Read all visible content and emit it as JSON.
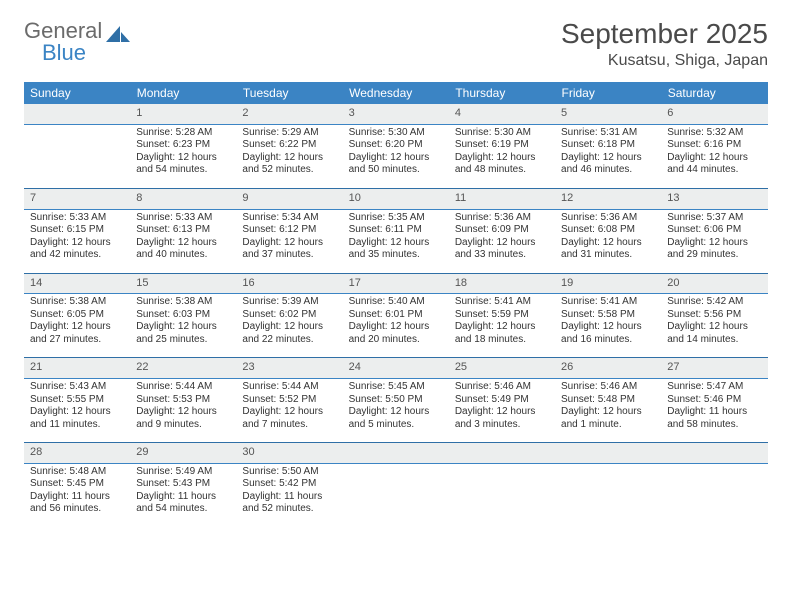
{
  "brand": {
    "word1": "General",
    "word2": "Blue"
  },
  "title": {
    "month": "September 2025",
    "location": "Kusatsu, Shiga, Japan"
  },
  "colors": {
    "header_bg": "#3b84c4",
    "header_text": "#ffffff",
    "daynum_bg": "#eceeee",
    "rule": "#2f6fa6",
    "logo_gray": "#6b6b6b",
    "logo_blue": "#3b84c4"
  },
  "day_headers": [
    "Sunday",
    "Monday",
    "Tuesday",
    "Wednesday",
    "Thursday",
    "Friday",
    "Saturday"
  ],
  "weeks": [
    {
      "nums": [
        "",
        "1",
        "2",
        "3",
        "4",
        "5",
        "6"
      ],
      "details": [
        [
          "",
          "",
          "",
          ""
        ],
        [
          "Sunrise: 5:28 AM",
          "Sunset: 6:23 PM",
          "Daylight: 12 hours",
          "and 54 minutes."
        ],
        [
          "Sunrise: 5:29 AM",
          "Sunset: 6:22 PM",
          "Daylight: 12 hours",
          "and 52 minutes."
        ],
        [
          "Sunrise: 5:30 AM",
          "Sunset: 6:20 PM",
          "Daylight: 12 hours",
          "and 50 minutes."
        ],
        [
          "Sunrise: 5:30 AM",
          "Sunset: 6:19 PM",
          "Daylight: 12 hours",
          "and 48 minutes."
        ],
        [
          "Sunrise: 5:31 AM",
          "Sunset: 6:18 PM",
          "Daylight: 12 hours",
          "and 46 minutes."
        ],
        [
          "Sunrise: 5:32 AM",
          "Sunset: 6:16 PM",
          "Daylight: 12 hours",
          "and 44 minutes."
        ]
      ]
    },
    {
      "nums": [
        "7",
        "8",
        "9",
        "10",
        "11",
        "12",
        "13"
      ],
      "details": [
        [
          "Sunrise: 5:33 AM",
          "Sunset: 6:15 PM",
          "Daylight: 12 hours",
          "and 42 minutes."
        ],
        [
          "Sunrise: 5:33 AM",
          "Sunset: 6:13 PM",
          "Daylight: 12 hours",
          "and 40 minutes."
        ],
        [
          "Sunrise: 5:34 AM",
          "Sunset: 6:12 PM",
          "Daylight: 12 hours",
          "and 37 minutes."
        ],
        [
          "Sunrise: 5:35 AM",
          "Sunset: 6:11 PM",
          "Daylight: 12 hours",
          "and 35 minutes."
        ],
        [
          "Sunrise: 5:36 AM",
          "Sunset: 6:09 PM",
          "Daylight: 12 hours",
          "and 33 minutes."
        ],
        [
          "Sunrise: 5:36 AM",
          "Sunset: 6:08 PM",
          "Daylight: 12 hours",
          "and 31 minutes."
        ],
        [
          "Sunrise: 5:37 AM",
          "Sunset: 6:06 PM",
          "Daylight: 12 hours",
          "and 29 minutes."
        ]
      ]
    },
    {
      "nums": [
        "14",
        "15",
        "16",
        "17",
        "18",
        "19",
        "20"
      ],
      "details": [
        [
          "Sunrise: 5:38 AM",
          "Sunset: 6:05 PM",
          "Daylight: 12 hours",
          "and 27 minutes."
        ],
        [
          "Sunrise: 5:38 AM",
          "Sunset: 6:03 PM",
          "Daylight: 12 hours",
          "and 25 minutes."
        ],
        [
          "Sunrise: 5:39 AM",
          "Sunset: 6:02 PM",
          "Daylight: 12 hours",
          "and 22 minutes."
        ],
        [
          "Sunrise: 5:40 AM",
          "Sunset: 6:01 PM",
          "Daylight: 12 hours",
          "and 20 minutes."
        ],
        [
          "Sunrise: 5:41 AM",
          "Sunset: 5:59 PM",
          "Daylight: 12 hours",
          "and 18 minutes."
        ],
        [
          "Sunrise: 5:41 AM",
          "Sunset: 5:58 PM",
          "Daylight: 12 hours",
          "and 16 minutes."
        ],
        [
          "Sunrise: 5:42 AM",
          "Sunset: 5:56 PM",
          "Daylight: 12 hours",
          "and 14 minutes."
        ]
      ]
    },
    {
      "nums": [
        "21",
        "22",
        "23",
        "24",
        "25",
        "26",
        "27"
      ],
      "details": [
        [
          "Sunrise: 5:43 AM",
          "Sunset: 5:55 PM",
          "Daylight: 12 hours",
          "and 11 minutes."
        ],
        [
          "Sunrise: 5:44 AM",
          "Sunset: 5:53 PM",
          "Daylight: 12 hours",
          "and 9 minutes."
        ],
        [
          "Sunrise: 5:44 AM",
          "Sunset: 5:52 PM",
          "Daylight: 12 hours",
          "and 7 minutes."
        ],
        [
          "Sunrise: 5:45 AM",
          "Sunset: 5:50 PM",
          "Daylight: 12 hours",
          "and 5 minutes."
        ],
        [
          "Sunrise: 5:46 AM",
          "Sunset: 5:49 PM",
          "Daylight: 12 hours",
          "and 3 minutes."
        ],
        [
          "Sunrise: 5:46 AM",
          "Sunset: 5:48 PM",
          "Daylight: 12 hours",
          "and 1 minute."
        ],
        [
          "Sunrise: 5:47 AM",
          "Sunset: 5:46 PM",
          "Daylight: 11 hours",
          "and 58 minutes."
        ]
      ]
    },
    {
      "nums": [
        "28",
        "29",
        "30",
        "",
        "",
        "",
        ""
      ],
      "details": [
        [
          "Sunrise: 5:48 AM",
          "Sunset: 5:45 PM",
          "Daylight: 11 hours",
          "and 56 minutes."
        ],
        [
          "Sunrise: 5:49 AM",
          "Sunset: 5:43 PM",
          "Daylight: 11 hours",
          "and 54 minutes."
        ],
        [
          "Sunrise: 5:50 AM",
          "Sunset: 5:42 PM",
          "Daylight: 11 hours",
          "and 52 minutes."
        ],
        [
          "",
          "",
          "",
          ""
        ],
        [
          "",
          "",
          "",
          ""
        ],
        [
          "",
          "",
          "",
          ""
        ],
        [
          "",
          "",
          "",
          ""
        ]
      ]
    }
  ]
}
